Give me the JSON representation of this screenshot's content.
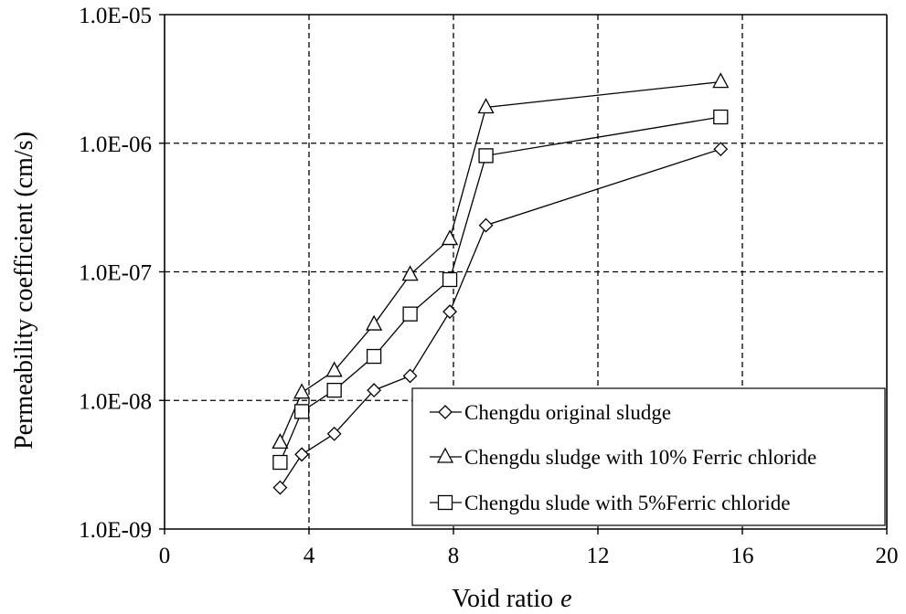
{
  "chart_data": {
    "type": "line",
    "title": "",
    "xlabel": "Void ratio",
    "xlabel_italic": "e",
    "ylabel": "Permeability coefficient (cm/s)",
    "xlim": [
      0,
      20
    ],
    "ylim": [
      1e-09,
      1e-05
    ],
    "y_scale": "log",
    "grid": true,
    "grid_style": "dashed",
    "x_ticks": [
      0,
      4,
      8,
      12,
      16,
      20
    ],
    "x_tick_labels": [
      "0",
      "4",
      "8",
      "12",
      "16",
      "20"
    ],
    "y_ticks": [
      1e-09,
      1e-08,
      1e-07,
      1e-06,
      1e-05
    ],
    "y_tick_labels": [
      "1.0E-09",
      "1.0E-08",
      "1.0E-07",
      "1.0E-06",
      "1.0E-05"
    ],
    "legend_position": "bottom-right",
    "series": [
      {
        "name": "Chengdu original sludge",
        "marker": "diamond",
        "x": [
          3.2,
          3.8,
          4.7,
          5.8,
          6.8,
          7.9,
          8.9,
          15.4
        ],
        "y": [
          2.1e-09,
          3.8e-09,
          5.5e-09,
          1.2e-08,
          1.55e-08,
          4.9e-08,
          2.3e-07,
          9e-07
        ]
      },
      {
        "name": "Chengdu sludge with 10% Ferric chloride",
        "marker": "triangle",
        "x": [
          3.2,
          3.8,
          4.7,
          5.8,
          6.8,
          7.9,
          8.9,
          15.4
        ],
        "y": [
          4.7e-09,
          1.15e-08,
          1.7e-08,
          3.9e-08,
          9.5e-08,
          1.8e-07,
          1.9e-06,
          3e-06
        ]
      },
      {
        "name": "Chengdu slude with 5%Ferric chloride",
        "marker": "square",
        "x": [
          3.2,
          3.8,
          4.7,
          5.8,
          6.8,
          7.9,
          8.9,
          15.4
        ],
        "y": [
          3.3e-09,
          8.2e-09,
          1.2e-08,
          2.2e-08,
          4.7e-08,
          8.7e-08,
          8e-07,
          1.6e-06
        ]
      }
    ]
  }
}
